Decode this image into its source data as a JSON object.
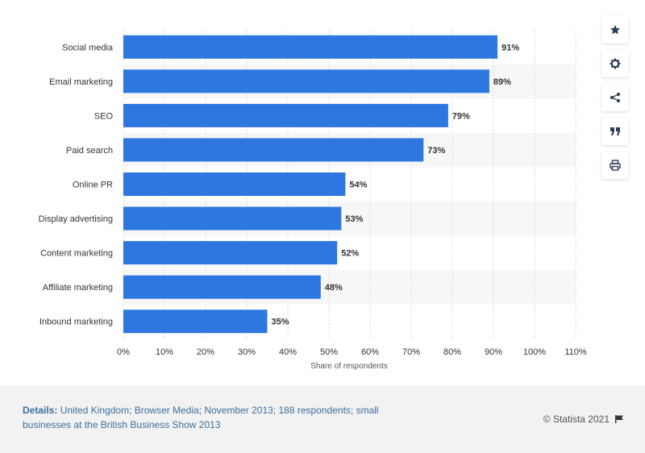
{
  "chart_data": {
    "type": "bar",
    "orientation": "horizontal",
    "categories": [
      "Social media",
      "Email marketing",
      "SEO",
      "Paid search",
      "Online PR",
      "Display advertising",
      "Content marketing",
      "Affiliate marketing",
      "Inbound marketing"
    ],
    "values": [
      91,
      89,
      79,
      73,
      54,
      53,
      52,
      48,
      35
    ],
    "value_labels": [
      "91%",
      "89%",
      "79%",
      "73%",
      "54%",
      "53%",
      "52%",
      "48%",
      "35%"
    ],
    "xlabel": "Share of respondents",
    "ylabel": "",
    "xlim": [
      0,
      110
    ],
    "xticks": [
      "0%",
      "10%",
      "20%",
      "30%",
      "40%",
      "50%",
      "60%",
      "70%",
      "80%",
      "90%",
      "100%",
      "110%"
    ],
    "grid": true,
    "bar_color": "#2f77e0"
  },
  "footer": {
    "details_label": "Details:",
    "details_text": "United Kingdom; Browser Media; November 2013; 188 respondents; small businesses at the British Business Show 2013",
    "credit": "© Statista 2021"
  },
  "toolbar": {
    "icons": [
      "star-icon",
      "gear-icon",
      "share-icon",
      "quote-icon",
      "print-icon"
    ]
  }
}
